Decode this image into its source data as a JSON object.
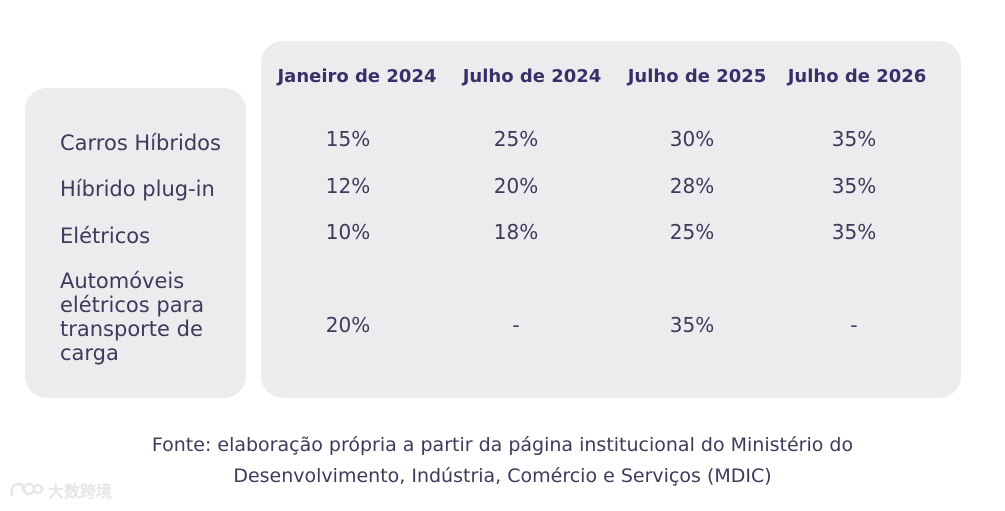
{
  "table": {
    "columns": [
      "Janeiro de 2024",
      "Julho de 2024",
      "Julho de 2025",
      "Julho de 2026"
    ],
    "rows": [
      {
        "label": "Carros Híbridos",
        "values": [
          "15%",
          "25%",
          "30%",
          "35%"
        ]
      },
      {
        "label": "Híbrido plug-in",
        "values": [
          "12%",
          "20%",
          "28%",
          "35%"
        ]
      },
      {
        "label": "Elétricos",
        "values": [
          "10%",
          "18%",
          "25%",
          "35%"
        ]
      },
      {
        "label": "Automóveis\nelétricos para\ntransporte de\ncarga",
        "values": [
          "20%",
          "-",
          "35%",
          "-"
        ]
      }
    ]
  },
  "source": {
    "line1": "Fonte: elaboração própria a partir da página institucional do Ministério do",
    "line2": "Desenvolvimento, Indústria, Comércio e Serviços (MDIC)"
  },
  "watermark": {
    "text": "大数跨境"
  },
  "colors": {
    "panel": "#ececef",
    "header": "#3a2f68",
    "text": "#3b3b5a"
  }
}
